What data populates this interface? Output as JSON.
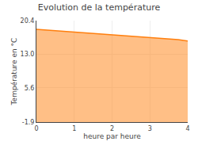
{
  "chart_data": {
    "type": "area",
    "title": "Evolution de la température",
    "xlabel": "heure par heure",
    "ylabel": "Température en °C",
    "x": [
      0,
      0.25,
      0.5,
      0.75,
      1.0,
      1.25,
      1.5,
      1.75,
      2.0,
      2.25,
      2.5,
      2.75,
      3.0,
      3.25,
      3.5,
      3.75,
      4.0
    ],
    "values": [
      18.5,
      18.35,
      18.2,
      18.05,
      17.9,
      17.7,
      17.55,
      17.4,
      17.25,
      17.1,
      16.95,
      16.8,
      16.65,
      16.5,
      16.35,
      16.2,
      15.9
    ],
    "xlim": [
      0,
      4
    ],
    "ylim": [
      -1.9,
      20.4
    ],
    "xticks": [
      0,
      1,
      2,
      3,
      4
    ],
    "yticks": [
      -1.9,
      5.6,
      {
        "value": 13.0,
        "label": "13.0"
      },
      20.4
    ],
    "grid": true
  }
}
